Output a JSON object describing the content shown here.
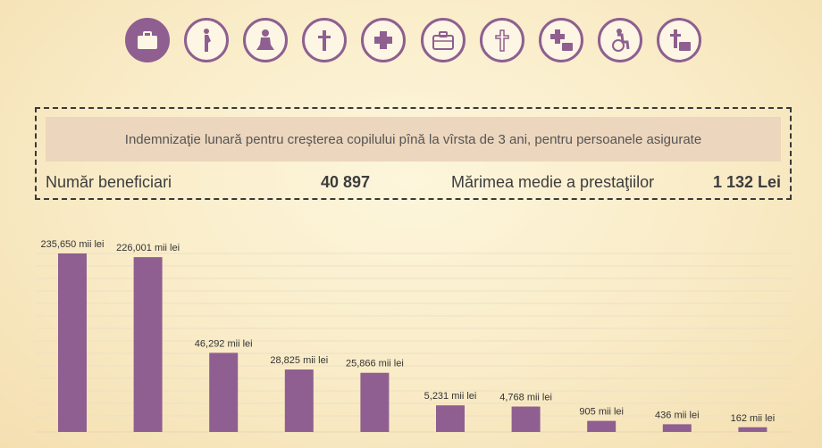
{
  "colors": {
    "accent": "#8e5f90",
    "background": "#fbf1d4",
    "band": "#ecd6bd"
  },
  "icons": [
    {
      "name": "briefcase-icon",
      "active": true
    },
    {
      "name": "pregnant-woman-icon",
      "active": false
    },
    {
      "name": "child-icon",
      "active": false
    },
    {
      "name": "cross-icon",
      "active": false
    },
    {
      "name": "medical-cross-icon",
      "active": false
    },
    {
      "name": "briefcase-outline-icon",
      "active": false
    },
    {
      "name": "cross-outline-icon",
      "active": false
    },
    {
      "name": "medical-cross-briefcase-icon",
      "active": false
    },
    {
      "name": "wheelchair-icon",
      "active": false
    },
    {
      "name": "cross-briefcase-icon",
      "active": false
    }
  ],
  "info": {
    "description": "Indemnizaţie lunară pentru creşterea copilului pînă la vîrsta de 3 ani, pentru persoanele asigurate",
    "beneficiaries_label": "Număr beneficiari",
    "beneficiaries_value": "40 897",
    "average_label": "Mărimea medie a prestaţiilor",
    "average_value": "1 132 Lei"
  },
  "chart_data": {
    "type": "bar",
    "categories": [
      "",
      "",
      "",
      "",
      "",
      "",
      "",
      "",
      "",
      ""
    ],
    "values": [
      235650,
      226001,
      46292,
      28825,
      25866,
      5231,
      4768,
      905,
      436,
      162
    ],
    "data_labels": [
      "235,650 mii lei",
      "226,001 mii lei",
      "46,292 mii lei",
      "28,825 mii lei",
      "25,866 mii lei",
      "5,231 mii lei",
      "4,768 mii lei",
      "905 mii lei",
      "436 mii lei",
      "162 mii lei"
    ],
    "title": "",
    "xlabel": "",
    "ylabel": "",
    "value_scale": "non-linear (visual)",
    "grid": true,
    "bar_color": "#8e5f90"
  }
}
